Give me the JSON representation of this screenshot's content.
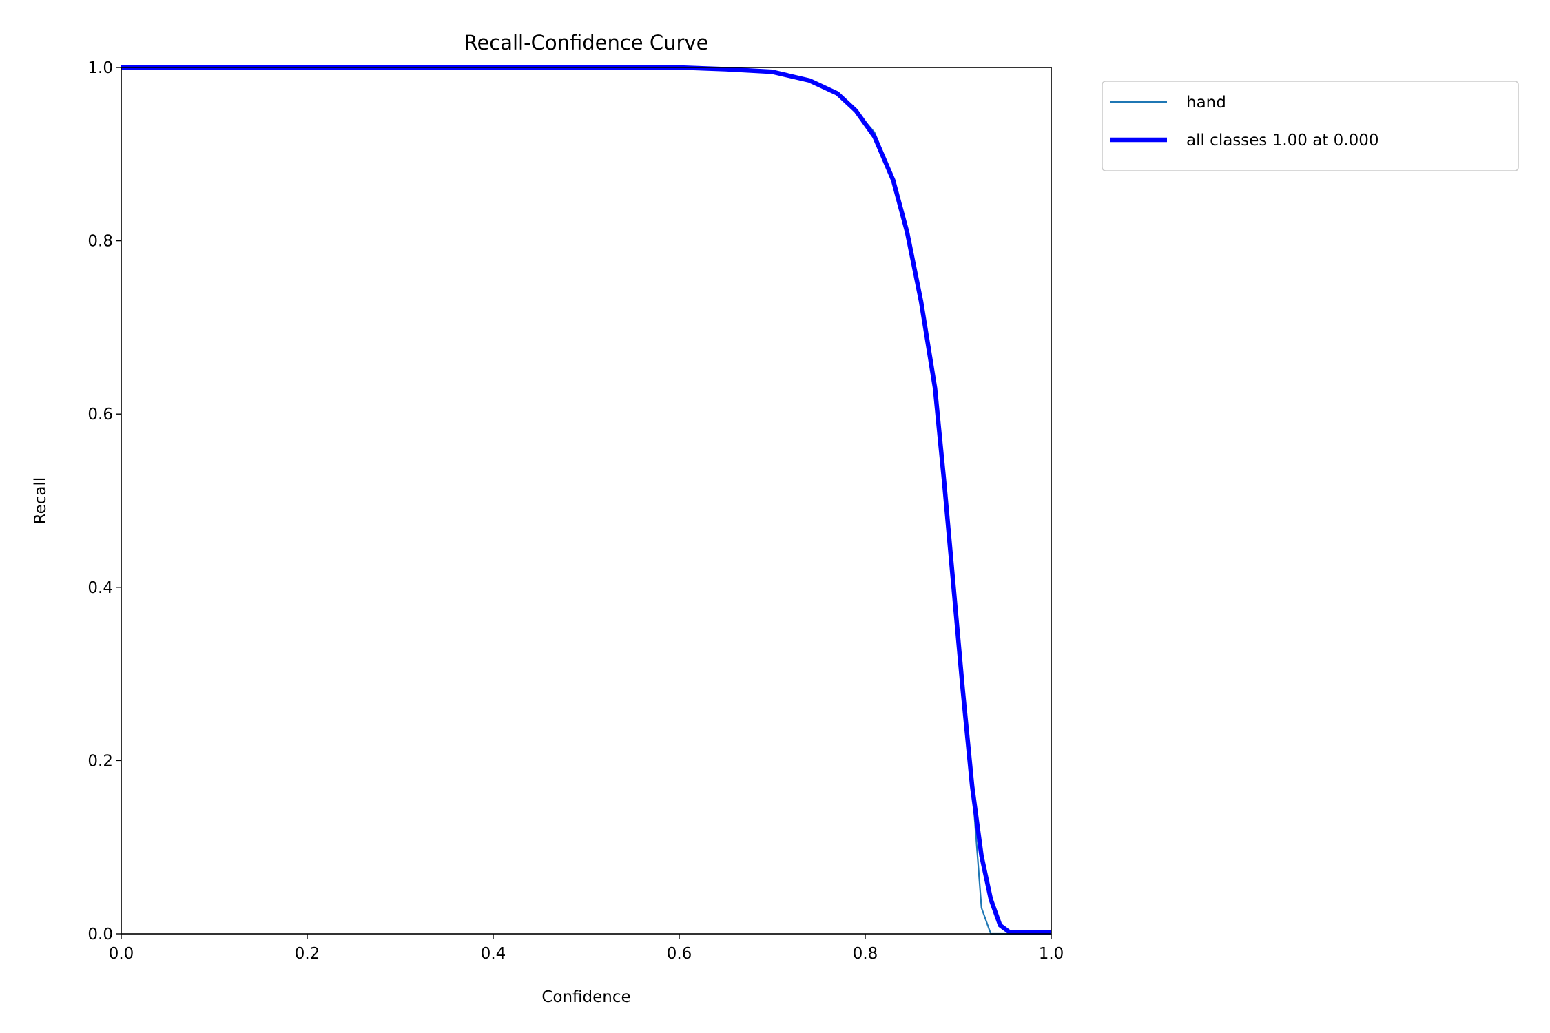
{
  "chart_data": {
    "type": "line",
    "title": "Recall-Confidence Curve",
    "x_label": "Confidence",
    "y_label": "Recall",
    "x": [
      0,
      0.1,
      0.2,
      0.3,
      0.4,
      0.5,
      0.6,
      0.65,
      0.7,
      0.74,
      0.77,
      0.79,
      0.81,
      0.83,
      0.845,
      0.86,
      0.875,
      0.885,
      0.895,
      0.905,
      0.915,
      0.925,
      0.935,
      0.945,
      0.955,
      1.0
    ],
    "series": [
      {
        "name": "hand",
        "color": "#1f77b4",
        "values": [
          1,
          1,
          1,
          1,
          1,
          1,
          1,
          0.998,
          0.995,
          0.985,
          0.97,
          0.95,
          0.925,
          0.87,
          0.81,
          0.73,
          0.63,
          0.52,
          0.4,
          0.28,
          0.17,
          0.03,
          0,
          0,
          0,
          0
        ]
      },
      {
        "name": "all classes 1.00 at 0.000",
        "color": "#0000ff",
        "values": [
          1,
          1,
          1,
          1,
          1,
          1,
          1,
          0.998,
          0.995,
          0.985,
          0.97,
          0.95,
          0.92,
          0.87,
          0.81,
          0.73,
          0.63,
          0.52,
          0.4,
          0.28,
          0.17,
          0.09,
          0.04,
          0.01,
          0.002,
          0.002
        ]
      }
    ],
    "xlim": [
      0,
      1
    ],
    "ylim": [
      0,
      1
    ],
    "xticks": [
      {
        "value": 0,
        "label": "0.0"
      },
      0.2,
      0.4,
      0.6,
      0.8,
      {
        "value": 1,
        "label": "1.0"
      }
    ],
    "yticks": [
      {
        "value": 0,
        "label": "0.0"
      },
      0.2,
      0.4,
      0.6,
      0.8,
      {
        "value": 1,
        "label": "1.0"
      }
    ],
    "legend": "outside-right",
    "grid": false
  }
}
